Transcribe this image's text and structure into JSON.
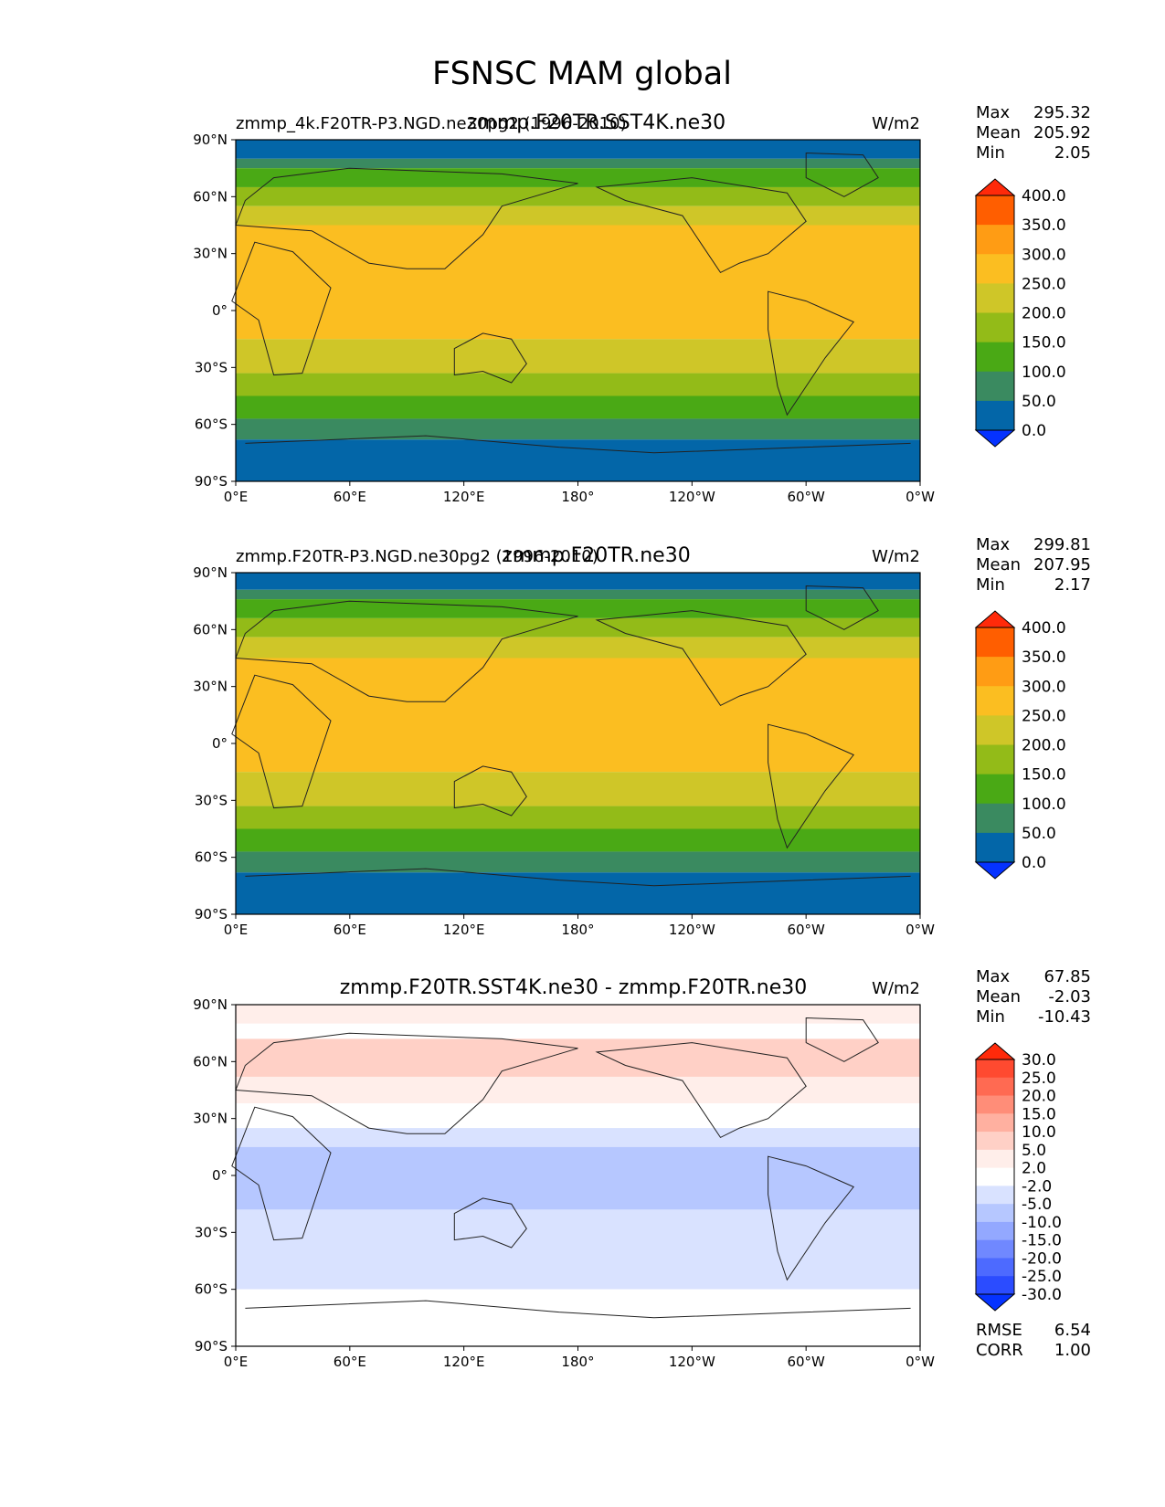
{
  "figure": {
    "title": "FSNSC MAM global",
    "lon_ticks": [
      "0°E",
      "60°E",
      "120°E",
      "180°",
      "120°W",
      "60°W",
      "0°W"
    ],
    "lat_ticks": [
      "90°N",
      "60°N",
      "30°N",
      "0°",
      "30°S",
      "60°S",
      "90°S"
    ]
  },
  "chart_data": [
    {
      "type": "heatmap",
      "title": "zmmp.F20TR.SST4K.ne30",
      "left_title": "zmmp_4k.F20TR-P3.NGD.ne30pg2 (1996-2010)",
      "units": "W/m2",
      "x_range": [
        0,
        360
      ],
      "y_range": [
        -90,
        90
      ],
      "stats": [
        {
          "label": "Max",
          "value": "295.32"
        },
        {
          "label": "Mean",
          "value": "205.92"
        },
        {
          "label": "Min",
          "value": "2.05"
        }
      ],
      "colorbar": {
        "ticks": [
          "400.0",
          "350.0",
          "300.0",
          "250.0",
          "200.0",
          "150.0",
          "100.0",
          "50.0",
          "0.0"
        ],
        "colors": [
          "#ff2a0a",
          "#ff5e00",
          "#ff9c14",
          "#fbbe21",
          "#cfc628",
          "#93bb18",
          "#4aa915",
          "#3a8a60",
          "#0366a8",
          "#0532ff"
        ]
      },
      "zonal_profile": [
        {
          "lat_from": 90,
          "lat_to": 80,
          "value": 25
        },
        {
          "lat_from": 80,
          "lat_to": 75,
          "value": 75
        },
        {
          "lat_from": 75,
          "lat_to": 65,
          "value": 125
        },
        {
          "lat_from": 65,
          "lat_to": 55,
          "value": 175
        },
        {
          "lat_from": 55,
          "lat_to": 45,
          "value": 210
        },
        {
          "lat_from": 45,
          "lat_to": -15,
          "value": 275
        },
        {
          "lat_from": -15,
          "lat_to": -33,
          "value": 225
        },
        {
          "lat_from": -33,
          "lat_to": -45,
          "value": 175
        },
        {
          "lat_from": -45,
          "lat_to": -57,
          "value": 125
        },
        {
          "lat_from": -57,
          "lat_to": -68,
          "value": 75
        },
        {
          "lat_from": -68,
          "lat_to": -90,
          "value": 25
        }
      ]
    },
    {
      "type": "heatmap",
      "title": "zmmp.F20TR.ne30",
      "left_title": "zmmp.F20TR-P3.NGD.ne30pg2 (1996-2010)",
      "units": "W/m2",
      "x_range": [
        0,
        360
      ],
      "y_range": [
        -90,
        90
      ],
      "stats": [
        {
          "label": "Max",
          "value": "299.81"
        },
        {
          "label": "Mean",
          "value": "207.95"
        },
        {
          "label": "Min",
          "value": "2.17"
        }
      ],
      "colorbar": {
        "ticks": [
          "400.0",
          "350.0",
          "300.0",
          "250.0",
          "200.0",
          "150.0",
          "100.0",
          "50.0",
          "0.0"
        ],
        "colors": [
          "#ff2a0a",
          "#ff5e00",
          "#ff9c14",
          "#fbbe21",
          "#cfc628",
          "#93bb18",
          "#4aa915",
          "#3a8a60",
          "#0366a8",
          "#0532ff"
        ]
      },
      "zonal_profile": [
        {
          "lat_from": 90,
          "lat_to": 81,
          "value": 25
        },
        {
          "lat_from": 81,
          "lat_to": 76,
          "value": 75
        },
        {
          "lat_from": 76,
          "lat_to": 66,
          "value": 125
        },
        {
          "lat_from": 66,
          "lat_to": 56,
          "value": 175
        },
        {
          "lat_from": 56,
          "lat_to": 45,
          "value": 210
        },
        {
          "lat_from": 45,
          "lat_to": -15,
          "value": 275
        },
        {
          "lat_from": -15,
          "lat_to": -33,
          "value": 225
        },
        {
          "lat_from": -33,
          "lat_to": -45,
          "value": 175
        },
        {
          "lat_from": -45,
          "lat_to": -57,
          "value": 125
        },
        {
          "lat_from": -57,
          "lat_to": -68,
          "value": 75
        },
        {
          "lat_from": -68,
          "lat_to": -90,
          "value": 25
        }
      ]
    },
    {
      "type": "heatmap",
      "title": "zmmp.F20TR.SST4K.ne30 - zmmp.F20TR.ne30",
      "units": "W/m2",
      "x_range": [
        0,
        360
      ],
      "y_range": [
        -90,
        90
      ],
      "stats": [
        {
          "label": "Max",
          "value": "67.85"
        },
        {
          "label": "Mean",
          "value": "-2.03"
        },
        {
          "label": "Min",
          "value": "-10.43"
        }
      ],
      "extra_stats": [
        {
          "label": "RMSE",
          "value": "6.54"
        },
        {
          "label": "CORR",
          "value": "1.00"
        }
      ],
      "colorbar": {
        "ticks": [
          "30.0",
          "25.0",
          "20.0",
          "15.0",
          "10.0",
          "5.0",
          "2.0",
          "-2.0",
          "-5.0",
          "-10.0",
          "-15.0",
          "-20.0",
          "-25.0",
          "-30.0"
        ],
        "colors": [
          "#ff2a0a",
          "#ff4a30",
          "#ff6a52",
          "#ff8d78",
          "#ffb0a0",
          "#ffd0c6",
          "#ffeeea",
          "#ffffff",
          "#d9e2ff",
          "#b6c7ff",
          "#93a8ff",
          "#7088ff",
          "#4d6aff",
          "#2b4cff",
          "#0532ff"
        ]
      },
      "zonal_profile": [
        {
          "lat_from": 90,
          "lat_to": 80,
          "value": 3.5
        },
        {
          "lat_from": 80,
          "lat_to": 72,
          "value": 0
        },
        {
          "lat_from": 72,
          "lat_to": 52,
          "value": 7
        },
        {
          "lat_from": 52,
          "lat_to": 38,
          "value": 3.5
        },
        {
          "lat_from": 38,
          "lat_to": 25,
          "value": 0
        },
        {
          "lat_from": 25,
          "lat_to": 15,
          "value": -3.5
        },
        {
          "lat_from": 15,
          "lat_to": -18,
          "value": -7
        },
        {
          "lat_from": -18,
          "lat_to": -60,
          "value": -3.5
        },
        {
          "lat_from": -60,
          "lat_to": -90,
          "value": 0
        }
      ]
    }
  ]
}
